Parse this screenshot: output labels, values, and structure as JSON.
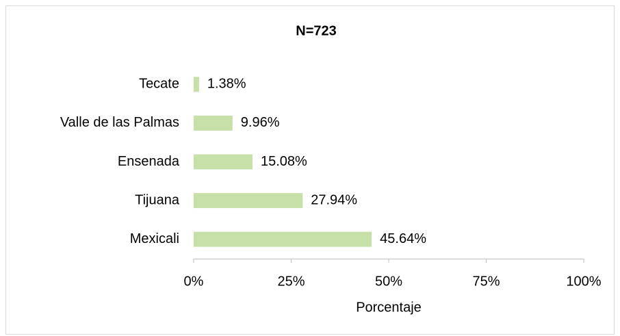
{
  "chart_data": {
    "type": "hbar",
    "title": "N=723",
    "categories": [
      "Tecate",
      "Valle de las Palmas",
      "Ensenada",
      "Tijuana",
      "Mexicali"
    ],
    "values": [
      1.38,
      9.96,
      15.08,
      27.94,
      45.64
    ],
    "value_labels": [
      "1.38%",
      "9.96%",
      "15.08%",
      "27.94%",
      "45.64%"
    ],
    "color": "#c6e0a8",
    "xlim": [
      0,
      100
    ],
    "xticks": [
      {
        "value": 0,
        "label": "0%"
      },
      {
        "value": 25,
        "label": "25%"
      },
      {
        "value": 50,
        "label": "50%"
      },
      {
        "value": 75,
        "label": "75%"
      },
      {
        "value": 100,
        "label": "100%"
      }
    ],
    "xlabel": "Porcentaje"
  }
}
